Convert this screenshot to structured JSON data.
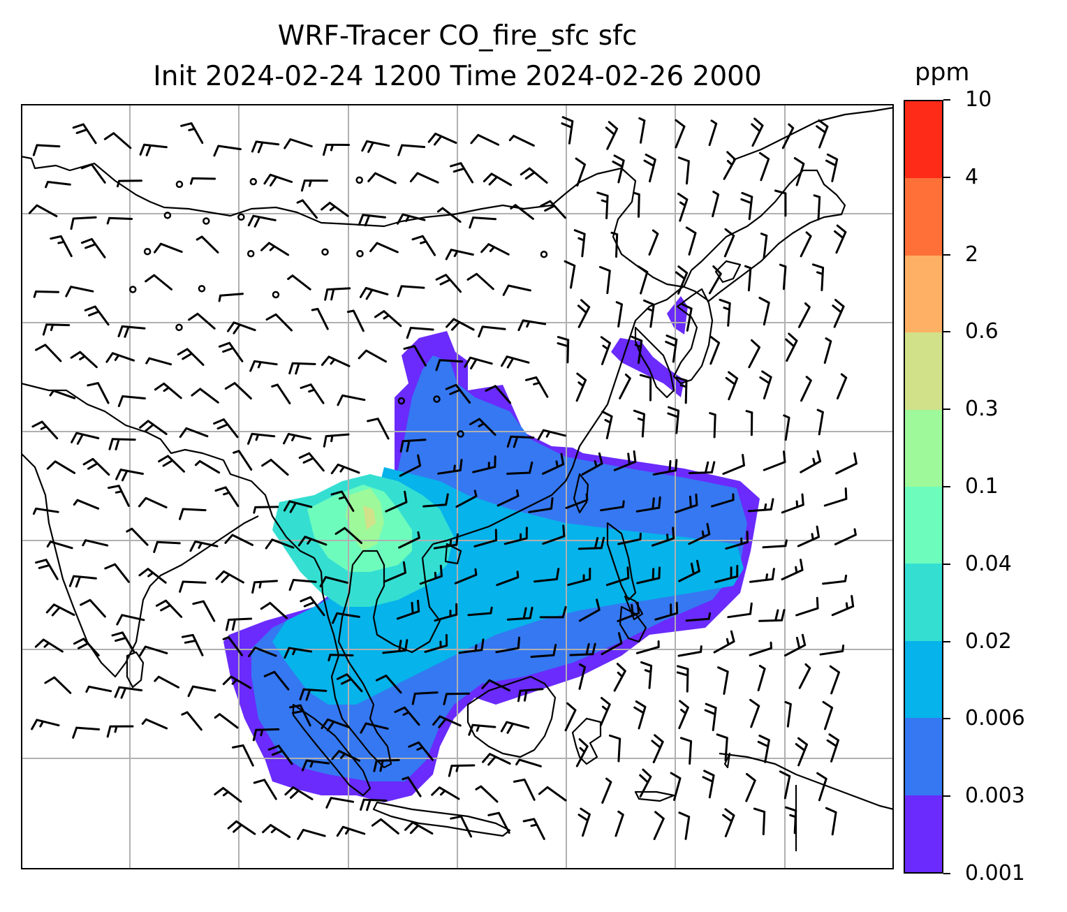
{
  "title": {
    "line1": "WRF-Tracer CO_fire_sfc sfc",
    "line2": "Init 2024-02-24 1200 Time 2024-02-26 2000"
  },
  "colorbar": {
    "unit": "ppm",
    "levels": [
      "0.001",
      "0.003",
      "0.006",
      "0.02",
      "0.04",
      "0.1",
      "0.3",
      "0.6",
      "2",
      "4",
      "10"
    ],
    "colors": [
      "#6a2bfc",
      "#3578f2",
      "#06b3ea",
      "#34dfd2",
      "#6efcbc",
      "#9ef99a",
      "#d0e18a",
      "#feb065",
      "#fe7038",
      "#fe2b18"
    ]
  },
  "map": {
    "gridlines": "on",
    "wind_barbs": "on",
    "land_outline_color": "#000000",
    "grid_color": "#b0b0b0"
  }
}
